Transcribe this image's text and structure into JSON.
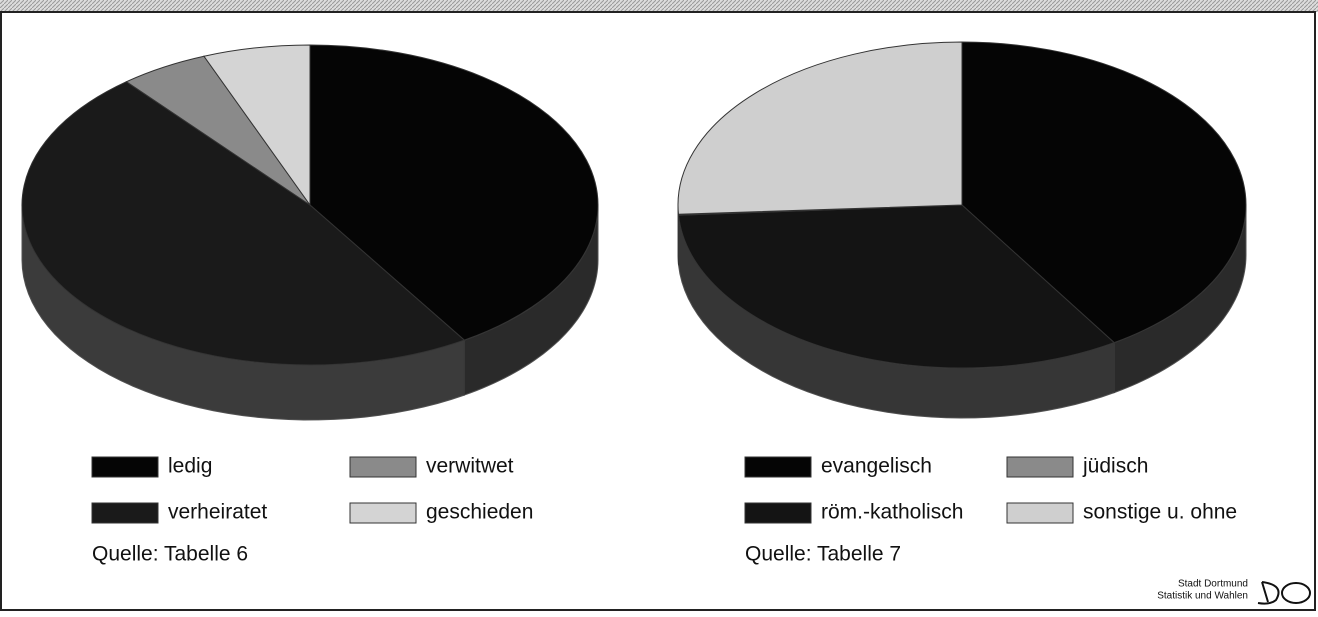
{
  "chart_data": [
    {
      "type": "pie",
      "categories": [
        "ledig",
        "verheiratet",
        "verwitwet",
        "geschieden"
      ],
      "values": [
        41,
        48,
        5,
        6
      ],
      "colors": [
        "#050505",
        "#1a1a1a",
        "#8a8a8a",
        "#d4d4d4"
      ],
      "source": "Quelle: Tabelle 6"
    },
    {
      "type": "pie",
      "categories": [
        "evangelisch",
        "röm.-katholisch",
        "jüdisch",
        "sonstige u. ohne"
      ],
      "values": [
        41,
        33,
        0.1,
        25.9
      ],
      "colors": [
        "#050505",
        "#141414",
        "#8a8a8a",
        "#cfcfcf"
      ],
      "source": "Quelle: Tabelle 7"
    }
  ],
  "footer": {
    "line1": "Stadt Dortmund",
    "line2": "Statistik und Wahlen"
  }
}
